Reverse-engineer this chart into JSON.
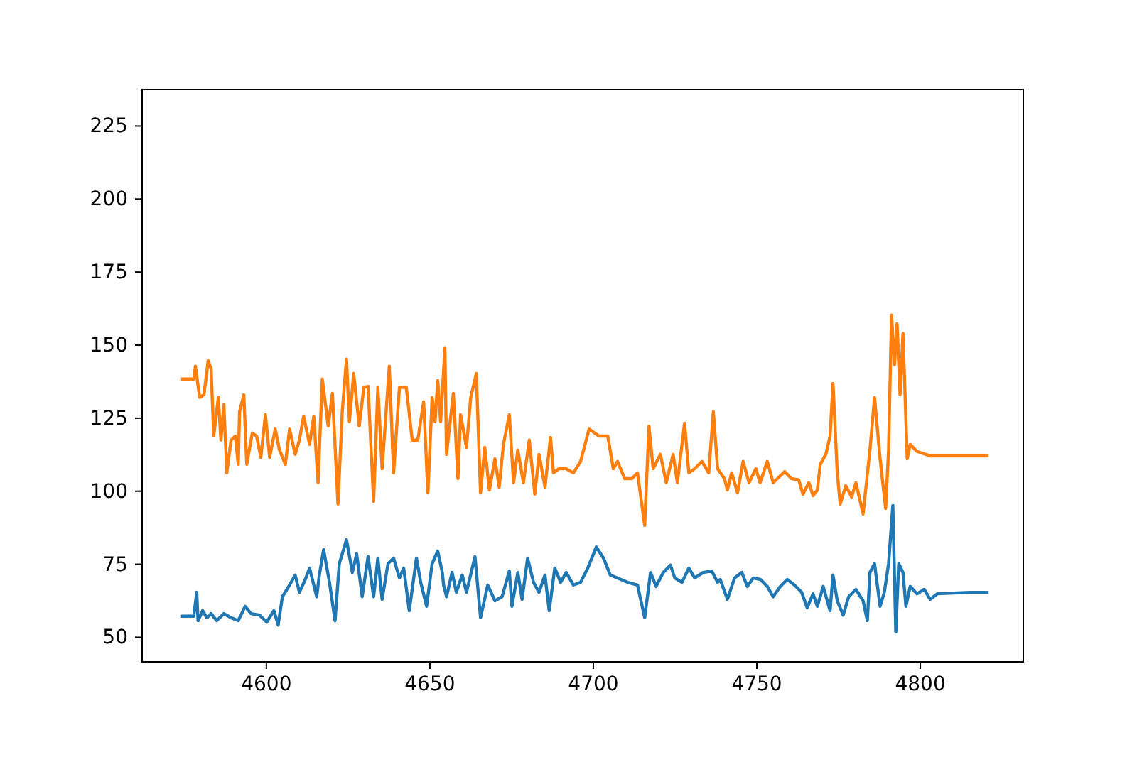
{
  "chart_data": {
    "type": "line",
    "xlim": [
      4562,
      4831.5
    ],
    "ylim": [
      41.6,
      237.5
    ],
    "xticks": [
      4600,
      4650,
      4700,
      4750,
      4800
    ],
    "yticks": [
      50,
      75,
      100,
      125,
      150,
      175,
      200,
      225
    ],
    "grid": false,
    "marker": "none",
    "line_style": "solid",
    "series": [
      {
        "color": "#1f77b4",
        "x": [
          4573.9,
          4577.8,
          4578.7,
          4579.1,
          4580.5,
          4581.8,
          4583.1,
          4584.8,
          4587.0,
          4589.2,
          4591.4,
          4593.5,
          4595.3,
          4597.9,
          4600.1,
          4602.3,
          4603.6,
          4604.9,
          4607.1,
          4608.8,
          4610.1,
          4611.9,
          4613.2,
          4615.4,
          4616.2,
          4617.5,
          4619.3,
          4621.0,
          4622.3,
          4624.5,
          4626.3,
          4627.6,
          4629.3,
          4631.1,
          4632.8,
          4634.1,
          4635.4,
          4637.2,
          4638.9,
          4640.7,
          4642.0,
          4643.7,
          4645.9,
          4647.2,
          4649.0,
          4650.7,
          4652.4,
          4653.8,
          4654.2,
          4655.1,
          4656.8,
          4658.1,
          4659.9,
          4661.2,
          4663.8,
          4665.5,
          4667.7,
          4669.9,
          4672.1,
          4674.3,
          4675.1,
          4676.9,
          4678.2,
          4679.9,
          4681.7,
          4683.4,
          4685.2,
          4686.5,
          4688.2,
          4690.0,
          4691.7,
          4693.9,
          4696.1,
          4698.3,
          4700.9,
          4703.1,
          4705.2,
          4707.4,
          4710.5,
          4713.5,
          4715.7,
          4717.5,
          4719.2,
          4721.4,
          4723.6,
          4724.9,
          4727.1,
          4729.2,
          4731.0,
          4733.6,
          4736.2,
          4738.0,
          4738.8,
          4741.0,
          4743.2,
          4745.4,
          4747.1,
          4748.9,
          4751.1,
          4753.2,
          4755.0,
          4757.2,
          4759.3,
          4761.5,
          4763.7,
          4765.4,
          4767.2,
          4768.5,
          4770.3,
          4772.4,
          4773.3,
          4774.6,
          4776.4,
          4778.1,
          4780.3,
          4782.5,
          4783.8,
          4784.6,
          4786.0,
          4787.7,
          4789.0,
          4790.3,
          4791.6,
          4792.5,
          4793.4,
          4794.7,
          4795.6,
          4796.9,
          4799.0,
          4801.2,
          4803.0,
          4805.2,
          4815.2,
          4820.9
        ],
        "values": [
          57.2,
          57.2,
          65.4,
          55.7,
          59.1,
          56.7,
          58.1,
          55.7,
          58.1,
          56.7,
          55.7,
          60.6,
          58.1,
          57.6,
          55.2,
          59.1,
          54.2,
          63.9,
          67.9,
          71.3,
          65.4,
          69.8,
          73.7,
          63.9,
          71.3,
          80.0,
          68.8,
          55.7,
          75.2,
          83.4,
          72.2,
          78.6,
          63.9,
          77.6,
          63.9,
          77.1,
          63.0,
          75.2,
          77.1,
          70.3,
          73.7,
          59.1,
          77.1,
          68.8,
          60.6,
          75.2,
          79.5,
          72.2,
          67.9,
          63.9,
          72.2,
          65.4,
          71.3,
          65.4,
          77.6,
          56.7,
          67.9,
          62.5,
          63.9,
          72.7,
          60.6,
          72.2,
          63.0,
          77.1,
          68.8,
          65.4,
          71.3,
          59.1,
          73.7,
          68.8,
          72.2,
          67.9,
          68.8,
          73.7,
          80.9,
          77.1,
          71.3,
          70.3,
          68.8,
          67.9,
          56.7,
          72.2,
          67.4,
          72.2,
          74.7,
          70.3,
          68.8,
          73.7,
          70.3,
          72.2,
          72.7,
          68.8,
          69.8,
          63.0,
          70.3,
          72.2,
          67.4,
          70.3,
          69.8,
          67.4,
          63.9,
          67.4,
          69.8,
          67.9,
          65.4,
          60.1,
          64.9,
          60.6,
          67.4,
          59.1,
          71.3,
          62.5,
          57.6,
          63.9,
          66.4,
          62.5,
          55.7,
          72.2,
          75.2,
          60.6,
          65.4,
          75.2,
          95.1,
          51.8,
          75.2,
          72.2,
          60.6,
          67.4,
          64.9,
          66.4,
          63.0,
          64.9,
          65.4,
          65.4
        ]
      },
      {
        "color": "#ff7f0e",
        "x": [
          4573.9,
          4577.8,
          4578.3,
          4579.6,
          4580.9,
          4582.2,
          4583.1,
          4583.9,
          4585.3,
          4586.1,
          4587.0,
          4587.9,
          4589.2,
          4590.5,
          4591.4,
          4591.8,
          4593.1,
          4594.0,
          4595.7,
          4597.0,
          4598.3,
          4599.7,
          4601.0,
          4602.7,
          4604.0,
          4605.8,
          4607.1,
          4608.8,
          4610.1,
          4611.4,
          4613.2,
          4614.5,
          4615.8,
          4617.1,
          4618.9,
          4620.2,
          4621.9,
          4623.2,
          4624.5,
          4625.4,
          4626.7,
          4628.4,
          4629.8,
          4631.1,
          4632.8,
          4634.1,
          4635.4,
          4637.6,
          4638.9,
          4640.7,
          4642.8,
          4644.6,
          4646.3,
          4648.1,
          4649.4,
          4650.7,
          4651.6,
          4652.4,
          4653.3,
          4654.6,
          4655.1,
          4655.9,
          4657.2,
          4658.6,
          4659.4,
          4661.2,
          4662.5,
          4664.2,
          4665.5,
          4666.8,
          4668.2,
          4669.9,
          4671.2,
          4672.5,
          4674.3,
          4675.6,
          4676.9,
          4678.6,
          4680.4,
          4682.1,
          4683.4,
          4685.2,
          4686.9,
          4687.8,
          4689.5,
          4691.7,
          4693.9,
          4696.1,
          4698.7,
          4701.7,
          4704.4,
          4706.1,
          4707.4,
          4709.6,
          4711.8,
          4713.5,
          4715.7,
          4717.0,
          4718.3,
          4720.5,
          4722.3,
          4724.4,
          4725.7,
          4727.9,
          4729.2,
          4731.0,
          4733.2,
          4735.3,
          4736.7,
          4738.0,
          4740.1,
          4741.0,
          4742.3,
          4744.1,
          4745.8,
          4747.6,
          4749.7,
          4751.0,
          4753.2,
          4755.0,
          4756.3,
          4758.5,
          4760.6,
          4762.8,
          4764.1,
          4765.9,
          4767.2,
          4768.5,
          4769.4,
          4771.1,
          4772.4,
          4773.3,
          4774.6,
          4775.5,
          4777.2,
          4779.0,
          4780.3,
          4782.5,
          4784.6,
          4786.0,
          4787.7,
          4789.4,
          4790.3,
          4791.2,
          4792.1,
          4792.9,
          4793.8,
          4794.7,
          4796.0,
          4796.9,
          4799.0,
          4803.0,
          4820.9
        ],
        "values": [
          138.4,
          138.4,
          142.8,
          132.1,
          133.0,
          144.7,
          141.8,
          118.9,
          132.1,
          117.5,
          129.6,
          106.3,
          117.5,
          118.9,
          109.2,
          127.2,
          133.0,
          109.2,
          119.9,
          118.9,
          111.6,
          126.2,
          111.6,
          121.3,
          114.1,
          109.2,
          121.3,
          112.6,
          117.5,
          125.7,
          116.0,
          125.7,
          102.9,
          138.4,
          122.3,
          133.5,
          95.6,
          127.2,
          145.2,
          123.8,
          140.3,
          122.3,
          135.5,
          135.9,
          96.5,
          135.5,
          107.7,
          142.8,
          106.3,
          135.5,
          135.5,
          117.5,
          117.5,
          130.6,
          99.4,
          132.1,
          123.8,
          137.9,
          123.8,
          149.1,
          112.6,
          120.9,
          133.5,
          104.3,
          126.2,
          115.0,
          132.1,
          140.3,
          99.4,
          115.0,
          100.4,
          111.1,
          101.4,
          116.0,
          126.2,
          102.9,
          114.1,
          102.9,
          117.5,
          99.0,
          112.6,
          101.4,
          118.4,
          106.3,
          107.7,
          107.7,
          106.3,
          110.2,
          121.3,
          118.9,
          118.9,
          107.7,
          110.2,
          104.3,
          104.3,
          106.3,
          88.3,
          122.3,
          107.7,
          112.6,
          102.9,
          112.6,
          102.9,
          123.3,
          106.3,
          107.7,
          110.2,
          106.3,
          127.2,
          107.7,
          104.3,
          100.4,
          106.3,
          99.4,
          110.2,
          102.9,
          107.7,
          102.9,
          110.2,
          102.9,
          104.3,
          106.7,
          104.3,
          103.9,
          99.0,
          102.9,
          98.5,
          100.4,
          109.2,
          112.6,
          118.9,
          136.9,
          106.3,
          95.6,
          101.9,
          98.0,
          102.9,
          92.2,
          114.1,
          132.1,
          111.1,
          94.1,
          114.1,
          160.3,
          143.3,
          157.3,
          133.0,
          154.0,
          111.1,
          116.0,
          113.6,
          112.1,
          112.1
        ]
      }
    ]
  }
}
